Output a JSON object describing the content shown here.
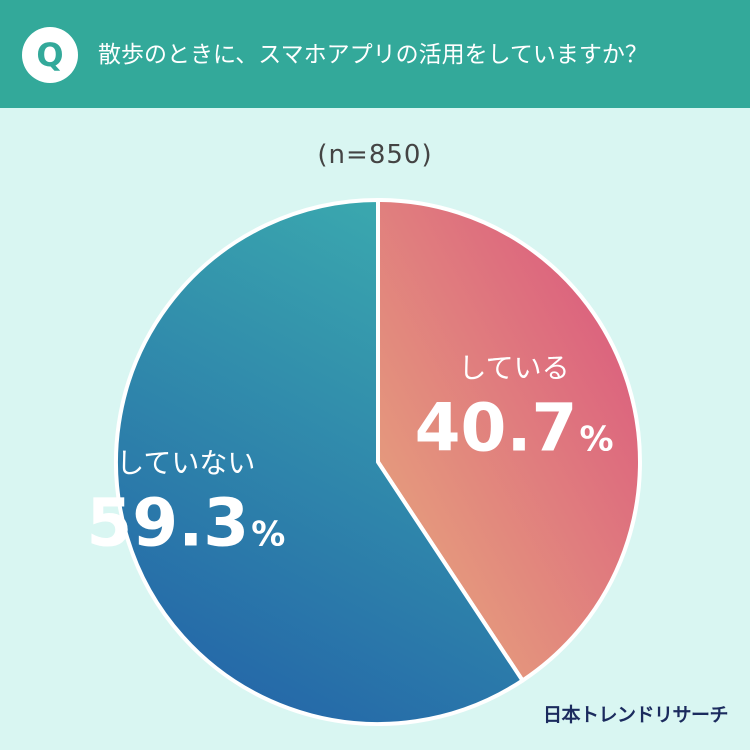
{
  "header": {
    "badge": "Q",
    "question": "散歩のときに、スマホアプリの活用をしていますか？"
  },
  "sample_size": "(n=850)",
  "brand": "日本トレンドリサーチ",
  "colors": {
    "background": "#d9f6f2",
    "header": "#33a99a",
    "slice_yes_start": "#d9527f",
    "slice_yes_end": "#e8ad7c",
    "slice_no_start": "#3aa7ae",
    "slice_no_end": "#2363a8"
  },
  "chart_data": {
    "type": "pie",
    "categories": [
      "している",
      "していない"
    ],
    "values": [
      40.7,
      59.3
    ],
    "value_labels": [
      "40.7",
      "59.3"
    ],
    "unit": "%",
    "title": "散歩のときに、スマホアプリの活用をしていますか？"
  }
}
